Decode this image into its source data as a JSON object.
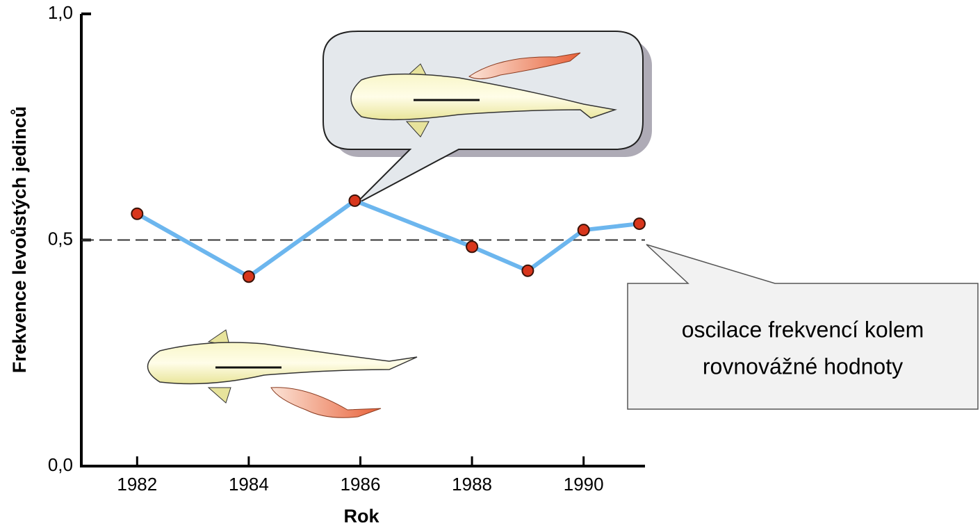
{
  "chart_data": {
    "type": "line",
    "x_label": "Rok",
    "y_label": "Frekvence levoůstých jedinců",
    "x": [
      1982,
      1984,
      1985.9,
      1988,
      1989,
      1990,
      1991
    ],
    "series": [
      {
        "color": "#6cb6ee",
        "marker_color": "#d8361c",
        "values": [
          0.558,
          0.419,
          0.587,
          0.485,
          0.432,
          0.522,
          0.536
        ]
      }
    ],
    "xlim": [
      1981,
      1991.1
    ],
    "xticks": [
      1982,
      1984,
      1986,
      1988,
      1990
    ],
    "ylim": [
      0,
      1
    ],
    "yticks": [
      {
        "value": 0,
        "label": "0,0"
      },
      {
        "value": 0.5,
        "label": "0,5"
      },
      {
        "value": 1,
        "label": "1,0"
      }
    ],
    "reference_line": 0.5,
    "annotation": [
      "oscilace frekvencí kolem",
      "rovnovážné hodnoty"
    ]
  }
}
